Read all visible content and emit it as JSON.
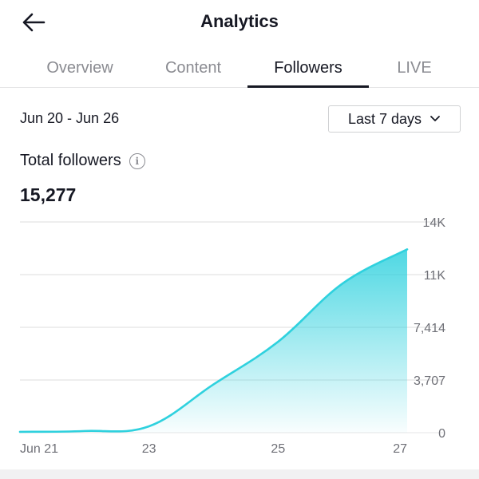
{
  "header": {
    "title": "Analytics",
    "back_icon": "arrow-left-icon"
  },
  "tabs": [
    {
      "label": "Overview",
      "active": false
    },
    {
      "label": "Content",
      "active": false
    },
    {
      "label": "Followers",
      "active": true
    },
    {
      "label": "LIVE",
      "active": false
    }
  ],
  "filter": {
    "date_range": "Jun 20 - Jun 26",
    "period": "Last 7 days"
  },
  "metric": {
    "title": "Total followers",
    "value": "15,277"
  },
  "chart_data": {
    "type": "area",
    "color": "#2fd1de",
    "x_ticks": [
      "Jun 21",
      "23",
      "25",
      "27"
    ],
    "y_ticks": [
      "0",
      "3,707",
      "7,414",
      "11K",
      "14K"
    ],
    "ylim": [
      0,
      14828
    ],
    "points": [
      {
        "x": "Jun 21",
        "y": 60
      },
      {
        "x": "Jun 22",
        "y": 120
      },
      {
        "x": "Jun 23",
        "y": 450
      },
      {
        "x": "Jun 24",
        "y": 3400
      },
      {
        "x": "Jun 25",
        "y": 6400
      },
      {
        "x": "Jun 26",
        "y": 10500
      },
      {
        "x": "Jun 27",
        "y": 12900
      }
    ]
  }
}
